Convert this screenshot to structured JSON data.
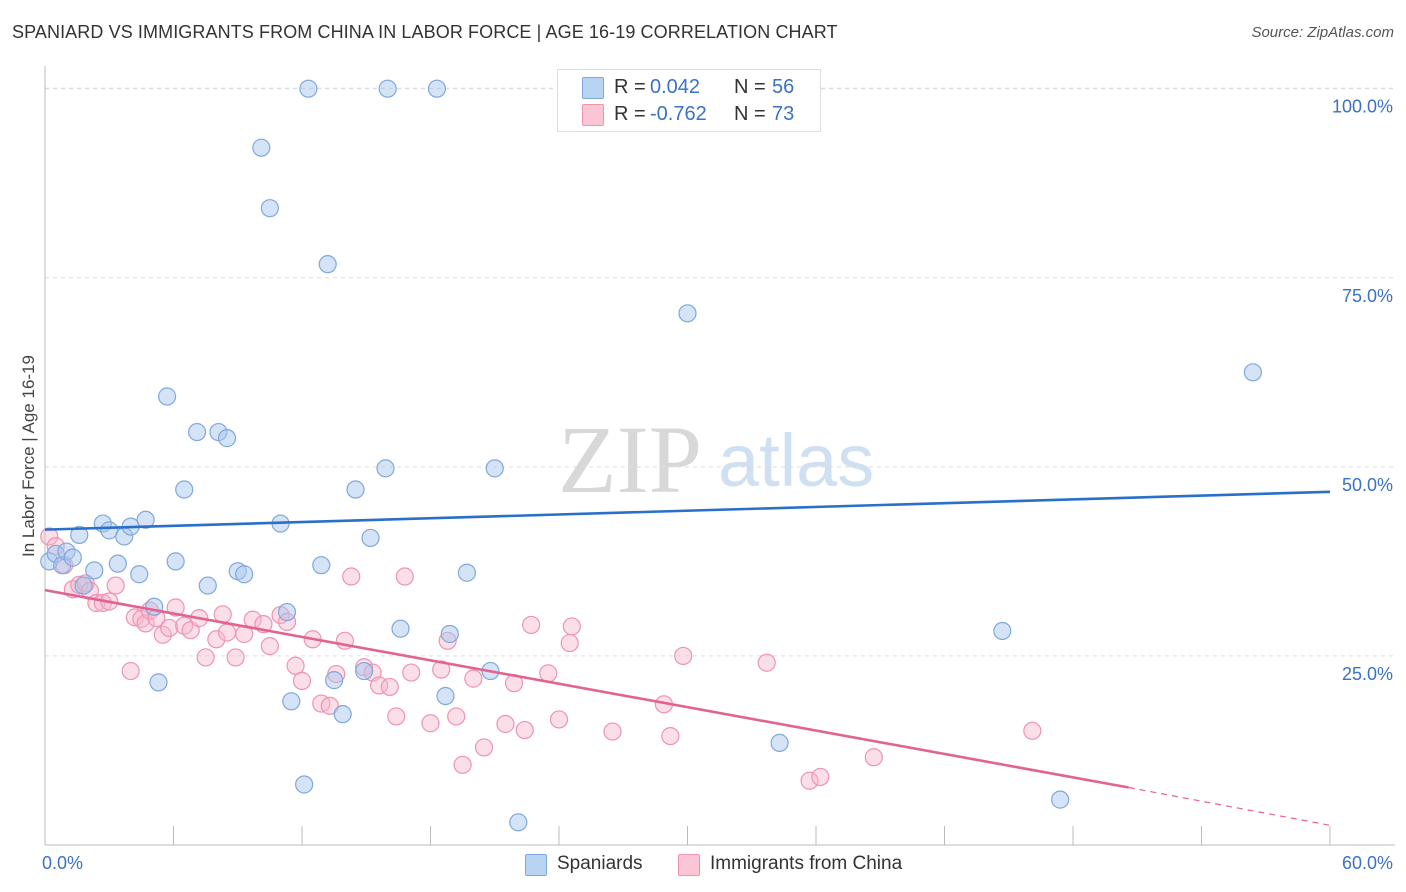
{
  "title": "SPANIARD VS IMMIGRANTS FROM CHINA IN LABOR FORCE | AGE 16-19 CORRELATION CHART",
  "source": "Source: ZipAtlas.com",
  "watermark": {
    "zip": "ZIP",
    "atlas": "atlas"
  },
  "colors": {
    "blue_fill": "#a9c7ee",
    "blue_stroke": "#7fa8dc",
    "blue_line": "#2a6fca",
    "pink_fill": "#f6b8cc",
    "pink_stroke": "#ef93b0",
    "pink_line": "#e2638f",
    "value_text": "#3a72c4",
    "grid": "#dddddd"
  },
  "legend": {
    "rows": [
      {
        "series": "Spaniards",
        "r_label": "R =",
        "r_value": "0.042",
        "n_label": "N =",
        "n_value": "56"
      },
      {
        "series": "Immigrants from China",
        "r_label": "R =",
        "r_value": "-0.762",
        "n_label": "N =",
        "n_value": "73"
      }
    ]
  },
  "chart_data": {
    "type": "scatter",
    "title": "SPANIARD VS IMMIGRANTS FROM CHINA IN LABOR FORCE | AGE 16-19 CORRELATION CHART",
    "xlabel": "",
    "ylabel": "In Labor Force | Age 16-19",
    "xlim": [
      0,
      60
    ],
    "ylim": [
      0,
      103
    ],
    "x_tick_labels": [
      "0.0%",
      "60.0%"
    ],
    "y_ticks": [
      25,
      50,
      75,
      100
    ],
    "y_tick_labels": [
      "25.0%",
      "50.0%",
      "75.0%",
      "100.0%"
    ],
    "grid": true,
    "legend_position": "top-center",
    "series": [
      {
        "name": "Spaniards",
        "points": [
          [
            0.2,
            37.5
          ],
          [
            0.5,
            38.5
          ],
          [
            0.8,
            37.0
          ],
          [
            1.0,
            38.8
          ],
          [
            1.3,
            38.0
          ],
          [
            1.6,
            41.0
          ],
          [
            1.8,
            34.3
          ],
          [
            2.3,
            36.3
          ],
          [
            2.7,
            42.5
          ],
          [
            3.0,
            41.6
          ],
          [
            3.4,
            37.2
          ],
          [
            3.7,
            40.8
          ],
          [
            4.0,
            42.1
          ],
          [
            4.4,
            35.8
          ],
          [
            4.7,
            43.0
          ],
          [
            5.1,
            31.5
          ],
          [
            5.3,
            21.5
          ],
          [
            5.7,
            59.3
          ],
          [
            6.1,
            37.5
          ],
          [
            6.5,
            47.0
          ],
          [
            7.1,
            54.6
          ],
          [
            7.6,
            34.3
          ],
          [
            8.1,
            54.6
          ],
          [
            8.5,
            53.8
          ],
          [
            9.0,
            36.2
          ],
          [
            9.3,
            35.8
          ],
          [
            10.1,
            92.2
          ],
          [
            10.5,
            84.2
          ],
          [
            11.0,
            42.5
          ],
          [
            11.3,
            30.8
          ],
          [
            11.5,
            19.0
          ],
          [
            12.1,
            8.0
          ],
          [
            12.3,
            100.0
          ],
          [
            12.9,
            37.0
          ],
          [
            13.2,
            76.8
          ],
          [
            13.5,
            21.8
          ],
          [
            13.9,
            17.3
          ],
          [
            14.5,
            47.0
          ],
          [
            14.9,
            23.0
          ],
          [
            15.2,
            40.6
          ],
          [
            15.9,
            49.8
          ],
          [
            16.0,
            100.0
          ],
          [
            16.6,
            28.6
          ],
          [
            18.3,
            100.0
          ],
          [
            18.9,
            27.9
          ],
          [
            18.7,
            19.7
          ],
          [
            19.7,
            36.0
          ],
          [
            20.8,
            23.0
          ],
          [
            21.0,
            49.8
          ],
          [
            22.1,
            3.0
          ],
          [
            30.0,
            70.3
          ],
          [
            31.3,
            100.0
          ],
          [
            34.3,
            13.5
          ],
          [
            44.7,
            28.3
          ],
          [
            47.4,
            6.0
          ],
          [
            56.4,
            62.5
          ]
        ]
      },
      {
        "name": "Immigrants from China",
        "points": [
          [
            0.2,
            40.8
          ],
          [
            0.5,
            39.5
          ],
          [
            0.9,
            37.0
          ],
          [
            1.3,
            33.8
          ],
          [
            1.6,
            34.4
          ],
          [
            1.9,
            34.6
          ],
          [
            2.1,
            33.6
          ],
          [
            2.4,
            32.0
          ],
          [
            2.7,
            32.0
          ],
          [
            3.0,
            32.2
          ],
          [
            3.3,
            34.3
          ],
          [
            4.0,
            23.0
          ],
          [
            4.2,
            30.1
          ],
          [
            4.5,
            29.9
          ],
          [
            4.7,
            29.3
          ],
          [
            4.9,
            31.0
          ],
          [
            5.2,
            30.0
          ],
          [
            5.5,
            27.8
          ],
          [
            5.8,
            28.7
          ],
          [
            6.1,
            31.4
          ],
          [
            6.5,
            29.0
          ],
          [
            6.8,
            28.4
          ],
          [
            7.2,
            30.0
          ],
          [
            7.5,
            24.8
          ],
          [
            8.0,
            27.2
          ],
          [
            8.3,
            30.5
          ],
          [
            8.5,
            28.1
          ],
          [
            8.9,
            24.8
          ],
          [
            9.3,
            27.9
          ],
          [
            9.7,
            29.8
          ],
          [
            10.2,
            29.2
          ],
          [
            10.5,
            26.3
          ],
          [
            11.0,
            30.4
          ],
          [
            11.3,
            29.5
          ],
          [
            11.7,
            23.7
          ],
          [
            12.0,
            21.7
          ],
          [
            12.5,
            27.2
          ],
          [
            12.9,
            18.7
          ],
          [
            13.3,
            18.4
          ],
          [
            13.6,
            22.6
          ],
          [
            14.0,
            27.0
          ],
          [
            14.3,
            35.5
          ],
          [
            14.9,
            23.5
          ],
          [
            15.3,
            22.8
          ],
          [
            15.6,
            21.1
          ],
          [
            16.1,
            20.9
          ],
          [
            16.4,
            17.0
          ],
          [
            16.8,
            35.5
          ],
          [
            17.1,
            22.8
          ],
          [
            18.0,
            16.1
          ],
          [
            18.5,
            23.2
          ],
          [
            18.8,
            27.0
          ],
          [
            19.2,
            17.0
          ],
          [
            19.5,
            10.6
          ],
          [
            20.0,
            22.0
          ],
          [
            20.5,
            12.9
          ],
          [
            21.5,
            16.0
          ],
          [
            21.9,
            21.4
          ],
          [
            22.4,
            15.2
          ],
          [
            22.7,
            29.1
          ],
          [
            23.5,
            22.7
          ],
          [
            24.0,
            16.6
          ],
          [
            24.5,
            26.7
          ],
          [
            24.6,
            28.9
          ],
          [
            26.5,
            15.0
          ],
          [
            28.9,
            18.6
          ],
          [
            29.2,
            14.4
          ],
          [
            29.8,
            25.0
          ],
          [
            33.7,
            24.1
          ],
          [
            35.7,
            8.5
          ],
          [
            36.2,
            9.0
          ],
          [
            38.7,
            11.6
          ],
          [
            46.1,
            15.1
          ]
        ]
      }
    ],
    "trend_lines": [
      {
        "series": "Spaniards",
        "from": [
          0,
          41.7
        ],
        "to": [
          60,
          46.7
        ],
        "style": "solid"
      },
      {
        "series": "Immigrants from China",
        "from": [
          0,
          33.7
        ],
        "to": [
          50.6,
          7.6
        ],
        "style": "solid"
      },
      {
        "series": "Immigrants from China",
        "from": [
          50.6,
          7.6
        ],
        "to": [
          60,
          2.6
        ],
        "style": "dashed"
      }
    ]
  }
}
